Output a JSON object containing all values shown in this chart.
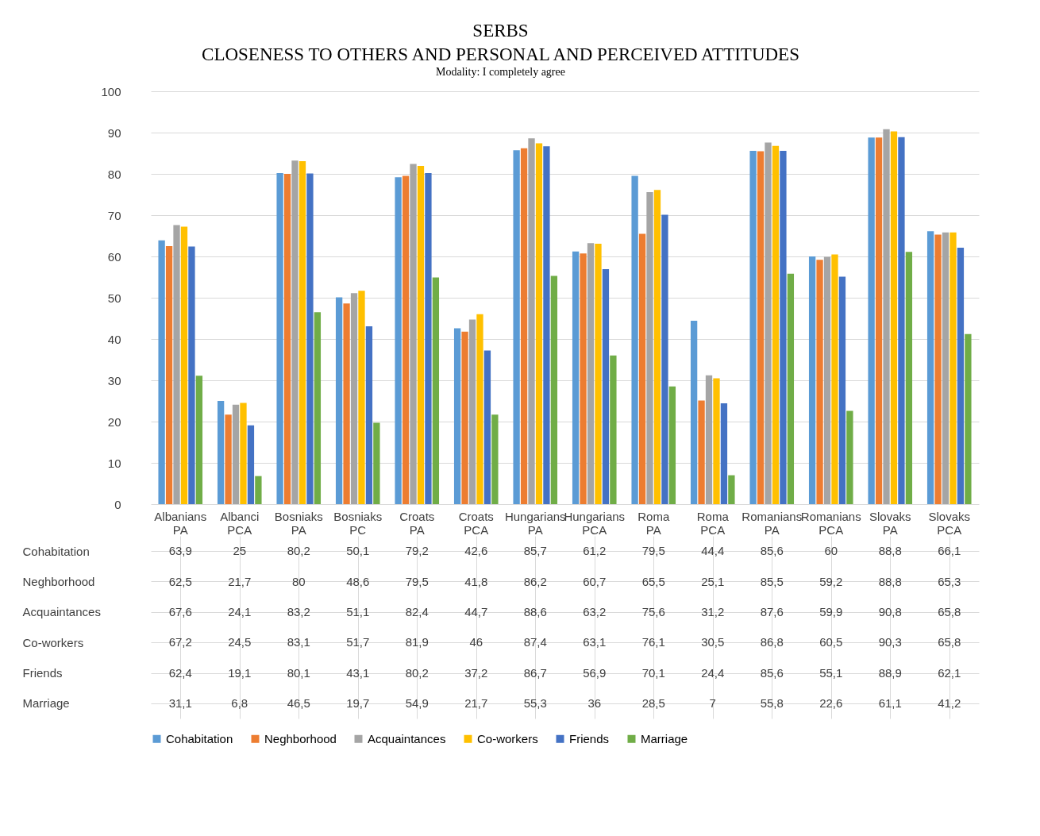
{
  "chart_data": {
    "type": "bar",
    "title": "SERBS\nCLOSENESS TO OTHERS AND PERSONAL AND PERCEIVED ATTITUDES",
    "subtitle": "Modality: I completely agree",
    "categories": [
      "Albanians PA",
      "Albanci PCA",
      "Bosniaks PA",
      "Bosniaks PC",
      "Croats PA",
      "Croats PCA",
      "Hungarians PA",
      "Hungarians PCA",
      "Roma PA",
      "Roma PCA",
      "Romanians PA",
      "Romanians PCA",
      "Slovaks PA",
      "Slovaks PCA"
    ],
    "series": [
      {
        "name": "Cohabitation",
        "color": "#5b9bd5",
        "values": [
          63.9,
          25,
          80.2,
          50.1,
          79.2,
          42.6,
          85.7,
          61.2,
          79.5,
          44.4,
          85.6,
          60,
          88.8,
          66.1
        ],
        "value_labels": [
          "63,9",
          "25",
          "80,2",
          "50,1",
          "79,2",
          "42,6",
          "85,7",
          "61,2",
          "79,5",
          "44,4",
          "85,6",
          "60",
          "88,8",
          "66,1"
        ]
      },
      {
        "name": "Neghborhood",
        "color": "#ed7d31",
        "values": [
          62.5,
          21.7,
          80,
          48.6,
          79.5,
          41.8,
          86.2,
          60.7,
          65.5,
          25.1,
          85.5,
          59.2,
          88.8,
          65.3
        ],
        "value_labels": [
          "62,5",
          "21,7",
          "80",
          "48,6",
          "79,5",
          "41,8",
          "86,2",
          "60,7",
          "65,5",
          "25,1",
          "85,5",
          "59,2",
          "88,8",
          "65,3"
        ]
      },
      {
        "name": "Acquaintances",
        "color": "#a5a5a5",
        "values": [
          67.6,
          24.1,
          83.2,
          51.1,
          82.4,
          44.7,
          88.6,
          63.2,
          75.6,
          31.2,
          87.6,
          59.9,
          90.8,
          65.8
        ],
        "value_labels": [
          "67,6",
          "24,1",
          "83,2",
          "51,1",
          "82,4",
          "44,7",
          "88,6",
          "63,2",
          "75,6",
          "31,2",
          "87,6",
          "59,9",
          "90,8",
          "65,8"
        ]
      },
      {
        "name": "Co-workers",
        "color": "#ffc000",
        "values": [
          67.2,
          24.5,
          83.1,
          51.7,
          81.9,
          46,
          87.4,
          63.1,
          76.1,
          30.5,
          86.8,
          60.5,
          90.3,
          65.8
        ],
        "value_labels": [
          "67,2",
          "24,5",
          "83,1",
          "51,7",
          "81,9",
          "46",
          "87,4",
          "63,1",
          "76,1",
          "30,5",
          "86,8",
          "60,5",
          "90,3",
          "65,8"
        ]
      },
      {
        "name": "Friends",
        "color": "#4472c4",
        "values": [
          62.4,
          19.1,
          80.1,
          43.1,
          80.2,
          37.2,
          86.7,
          56.9,
          70.1,
          24.4,
          85.6,
          55.1,
          88.9,
          62.1
        ],
        "value_labels": [
          "62,4",
          "19,1",
          "80,1",
          "43,1",
          "80,2",
          "37,2",
          "86,7",
          "56,9",
          "70,1",
          "24,4",
          "85,6",
          "55,1",
          "88,9",
          "62,1"
        ]
      },
      {
        "name": "Marriage",
        "color": "#70ad47",
        "values": [
          31.1,
          6.8,
          46.5,
          19.7,
          54.9,
          21.7,
          55.3,
          36,
          28.5,
          7,
          55.8,
          22.6,
          61.1,
          41.2
        ],
        "value_labels": [
          "31,1",
          "6,8",
          "46,5",
          "19,7",
          "54,9",
          "21,7",
          "55,3",
          "36",
          "28,5",
          "7",
          "55,8",
          "22,6",
          "61,1",
          "41,2"
        ]
      }
    ],
    "ylim": [
      0,
      100
    ],
    "yticks": [
      0,
      10,
      20,
      30,
      40,
      50,
      60,
      70,
      80,
      90,
      100
    ],
    "grid": "y",
    "legend": "bottom"
  }
}
